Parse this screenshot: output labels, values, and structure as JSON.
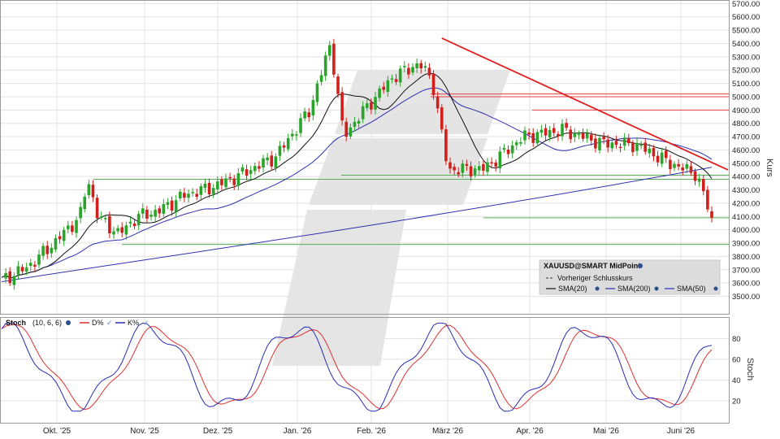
{
  "chart_data": [
    {
      "type": "candlestick",
      "symbol": "XAUUSD@SMART MidPoint",
      "axis_title": "Kurs",
      "y_ticks": [
        3500,
        3600,
        3700,
        3800,
        3900,
        4000,
        4100,
        4200,
        4300,
        4400,
        4500,
        4600,
        4700,
        4800,
        4900,
        5000,
        5100,
        5200,
        5300,
        5400,
        5500,
        5600,
        5700
      ],
      "y_tick_labels": [
        "3500.00",
        "3600.00",
        "3700.00",
        "3800.00",
        "3900.00",
        "4000.00",
        "4100.00",
        "4200.00",
        "4300.00",
        "4400.00",
        "4500.00",
        "4600.00",
        "4700.00",
        "4800.00",
        "4900.00",
        "5000.00",
        "5100.00",
        "5200.00",
        "5300.00",
        "5400.00",
        "5500.00",
        "5600.00",
        "5700.00"
      ],
      "x_labels": [
        "Okt. '25",
        "Nov. '25",
        "Dez. '25",
        "Jan. '26",
        "Feb. '26",
        "März '26",
        "Apr. '26",
        "Mai '26",
        "Juni '26"
      ],
      "grid": true,
      "legend": {
        "placement": "bottom-right",
        "title": "XAUUSD@SMART MidPoint",
        "prev_close_label": "Vorheriger Schlusskurs",
        "items": [
          {
            "label": "SMA(20)",
            "color": "#111111"
          },
          {
            "label": "SMA(200)",
            "color": "#2b2bb5"
          },
          {
            "label": "SMA(50)",
            "color": "#2b2bb5"
          }
        ]
      },
      "colors": {
        "up": "#2aa52a",
        "down": "#d0201c",
        "sma20": "#111111",
        "sma50": "#3030b0",
        "sma200": "#3030b0",
        "trendline": "#e02020",
        "support": "#55b055",
        "resistance": "#e04040"
      },
      "trendline": {
        "from": {
          "x": "März '26",
          "y": 5440
        },
        "to": {
          "x": "Juni '26",
          "y": 4450
        }
      },
      "horizontal_levels": [
        {
          "y": 5020,
          "color": "resistance"
        },
        {
          "y": 5000,
          "color": "resistance"
        },
        {
          "y": 4900,
          "color": "resistance"
        },
        {
          "y": 4410,
          "color": "support"
        },
        {
          "y": 4380,
          "color": "support"
        },
        {
          "y": 4090,
          "color": "support"
        },
        {
          "y": 3890,
          "color": "support"
        }
      ]
    },
    {
      "type": "line",
      "name": "Stoch",
      "params": "(10, 6, 6)",
      "axis_title": "Stoch",
      "y_ticks": [
        20,
        40,
        60,
        80
      ],
      "series": [
        {
          "name": "D%",
          "color": "#e03030"
        },
        {
          "name": "K%",
          "color": "#2b2bb5"
        }
      ]
    }
  ]
}
